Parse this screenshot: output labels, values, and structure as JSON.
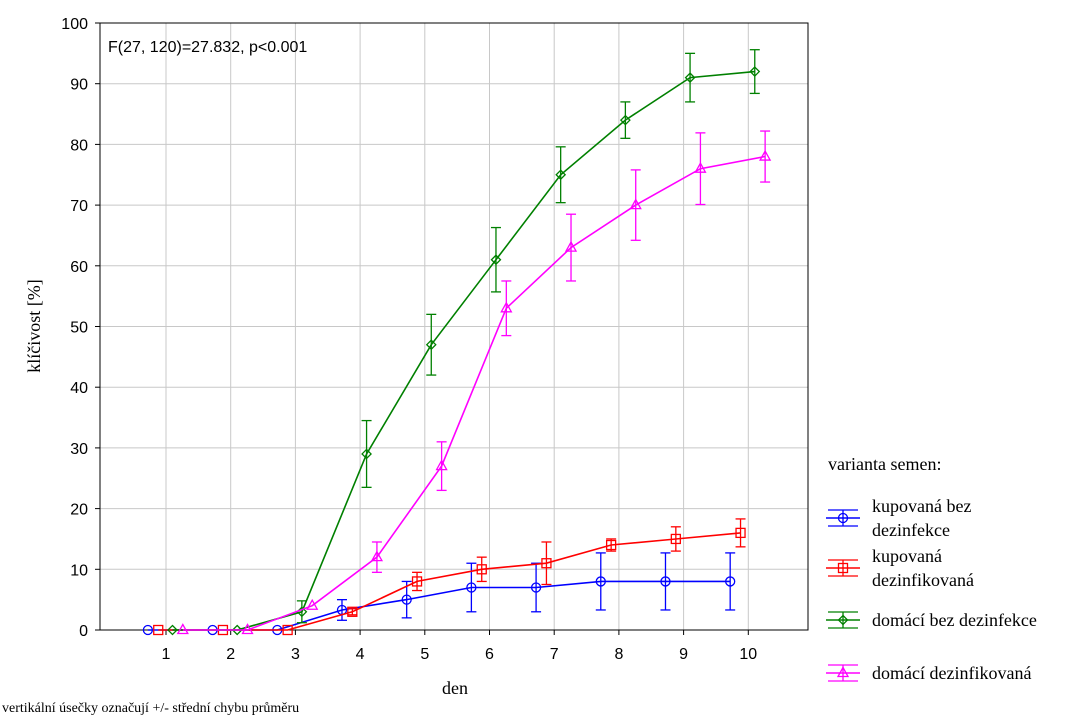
{
  "chart_data": {
    "type": "line",
    "annotation": "F(27, 120)=27.832, p<0.001",
    "xlabel": "den",
    "ylabel": "klíčivost [%]",
    "categories": [
      "1",
      "2",
      "3",
      "4",
      "5",
      "6",
      "7",
      "8",
      "9",
      "10"
    ],
    "ylim": [
      0,
      100
    ],
    "yticks": [
      "0",
      "10",
      "20",
      "30",
      "40",
      "50",
      "60",
      "70",
      "80",
      "90",
      "100"
    ],
    "grid": true,
    "legend_title": "varianta semen:",
    "legend_position": "right",
    "footnote": "vertikální úsečky označují +/- střední chybu průměru",
    "series": [
      {
        "name": "kupovaná bez dezinfekce",
        "legend_lines": [
          "kupovaná bez",
          "dezinfekce"
        ],
        "color": "#0000ff",
        "marker": "circle",
        "values": [
          0,
          0,
          0,
          3.3,
          5,
          7,
          7,
          8,
          8,
          8
        ],
        "errors": [
          0,
          0,
          0,
          1.7,
          3,
          4,
          4,
          4.7,
          4.7,
          4.7
        ]
      },
      {
        "name": "kupovaná dezinfikovaná",
        "legend_lines": [
          "kupovaná",
          "dezinfikovaná"
        ],
        "color": "#ff0000",
        "marker": "square",
        "values": [
          0,
          0,
          0,
          3,
          8,
          10,
          11,
          14,
          15,
          16
        ],
        "errors": [
          0,
          0,
          0,
          0.5,
          1.5,
          2,
          3.5,
          1,
          2,
          2.3
        ]
      },
      {
        "name": "domácí bez dezinfekce",
        "legend_lines": [
          "domácí bez dezinfekce"
        ],
        "color": "#008000",
        "marker": "diamond",
        "values": [
          0,
          0,
          3,
          29,
          47,
          61,
          75,
          84,
          91,
          92
        ],
        "errors": [
          0,
          0,
          1.8,
          5.5,
          5,
          5.3,
          4.6,
          3,
          4,
          3.6
        ]
      },
      {
        "name": "domácí dezinfikovaná",
        "legend_lines": [
          "domácí dezinfikovaná"
        ],
        "color": "#ff00ff",
        "marker": "triangle",
        "values": [
          0,
          0,
          4,
          12,
          27,
          53,
          63,
          70,
          76,
          78
        ],
        "errors": [
          0,
          0,
          0,
          2.5,
          4,
          4.5,
          5.5,
          5.8,
          5.9,
          4.2
        ]
      }
    ]
  }
}
